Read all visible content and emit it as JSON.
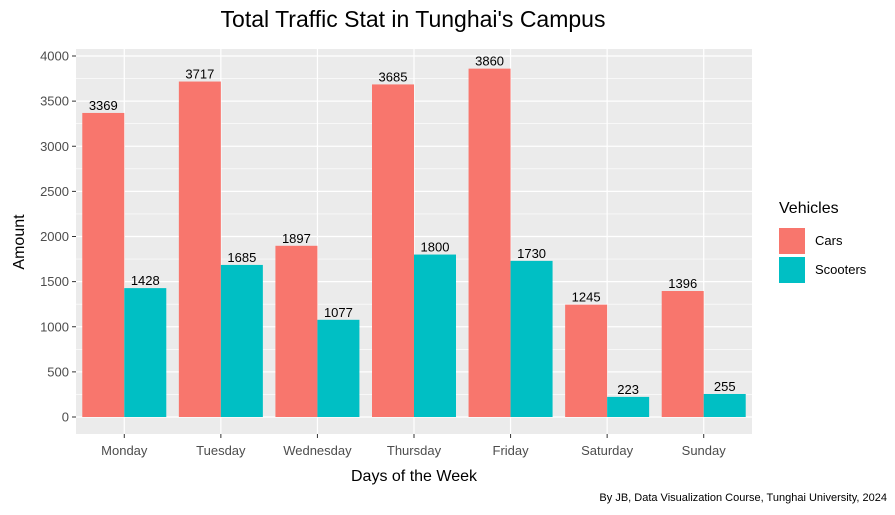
{
  "chart_data": {
    "type": "bar",
    "title": "Total Traffic Stat in Tunghai's Campus",
    "xlabel": "Days of the Week",
    "ylabel": "Amount",
    "caption": "By JB, Data Visualization Course, Tunghai University, 2024",
    "categories": [
      "Monday",
      "Tuesday",
      "Wednesday",
      "Thursday",
      "Friday",
      "Saturday",
      "Sunday"
    ],
    "series": [
      {
        "name": "Cars",
        "color": "#F8766D",
        "values": [
          3369,
          3717,
          1897,
          3685,
          3860,
          1245,
          1396
        ]
      },
      {
        "name": "Scooters",
        "color": "#00BFC4",
        "values": [
          1428,
          1685,
          1077,
          1800,
          1730,
          223,
          255
        ]
      }
    ],
    "ylim": [
      0,
      4000
    ],
    "yticks": [
      0,
      500,
      1000,
      1500,
      2000,
      2500,
      3000,
      3500,
      4000
    ],
    "legend_title": "Vehicles",
    "legend_position": "right",
    "grid": true,
    "panel_background": "#EBEBEB"
  }
}
